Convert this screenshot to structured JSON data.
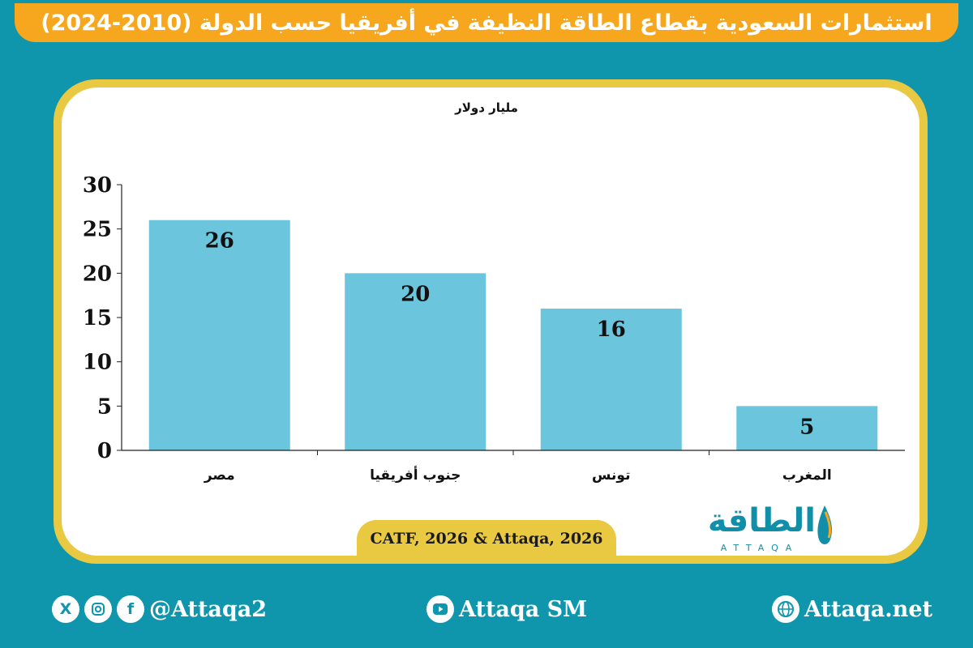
{
  "header": {
    "title": "استثمارات السعودية بقطاع الطاقة النظيفة في أفريقيا حسب الدولة (2010-2024)"
  },
  "chart_data": {
    "type": "bar",
    "title": "استثمارات السعودية بقطاع الطاقة النظيفة في أفريقيا حسب الدولة (2010-2024)",
    "ylabel": "مليار دولار",
    "xlabel": "",
    "categories": [
      "مصر",
      "جنوب أفريقيا",
      "تونس",
      "المغرب"
    ],
    "values": [
      26,
      20,
      16,
      5
    ],
    "data_labels": [
      "26",
      "20",
      "16",
      "5"
    ],
    "ylim": [
      0,
      30
    ],
    "yticks": [
      0,
      5,
      10,
      15,
      20,
      25,
      30
    ],
    "grid": false,
    "legend": "none",
    "bar_color": "#6bc5dc"
  },
  "source": {
    "text": "CATF, 2026 & Attaqa, 2026"
  },
  "logo": {
    "arabic": "الطاقة",
    "latin": "ATTAQA"
  },
  "footer": {
    "social_handle": "@Attaqa2",
    "youtube": "Attaqa SM",
    "website": "Attaqa.net"
  },
  "colors": {
    "background": "#0f96ad",
    "title_bar": "#f6a71d",
    "frame": "#e9c842",
    "bar": "#6bc5dc"
  }
}
